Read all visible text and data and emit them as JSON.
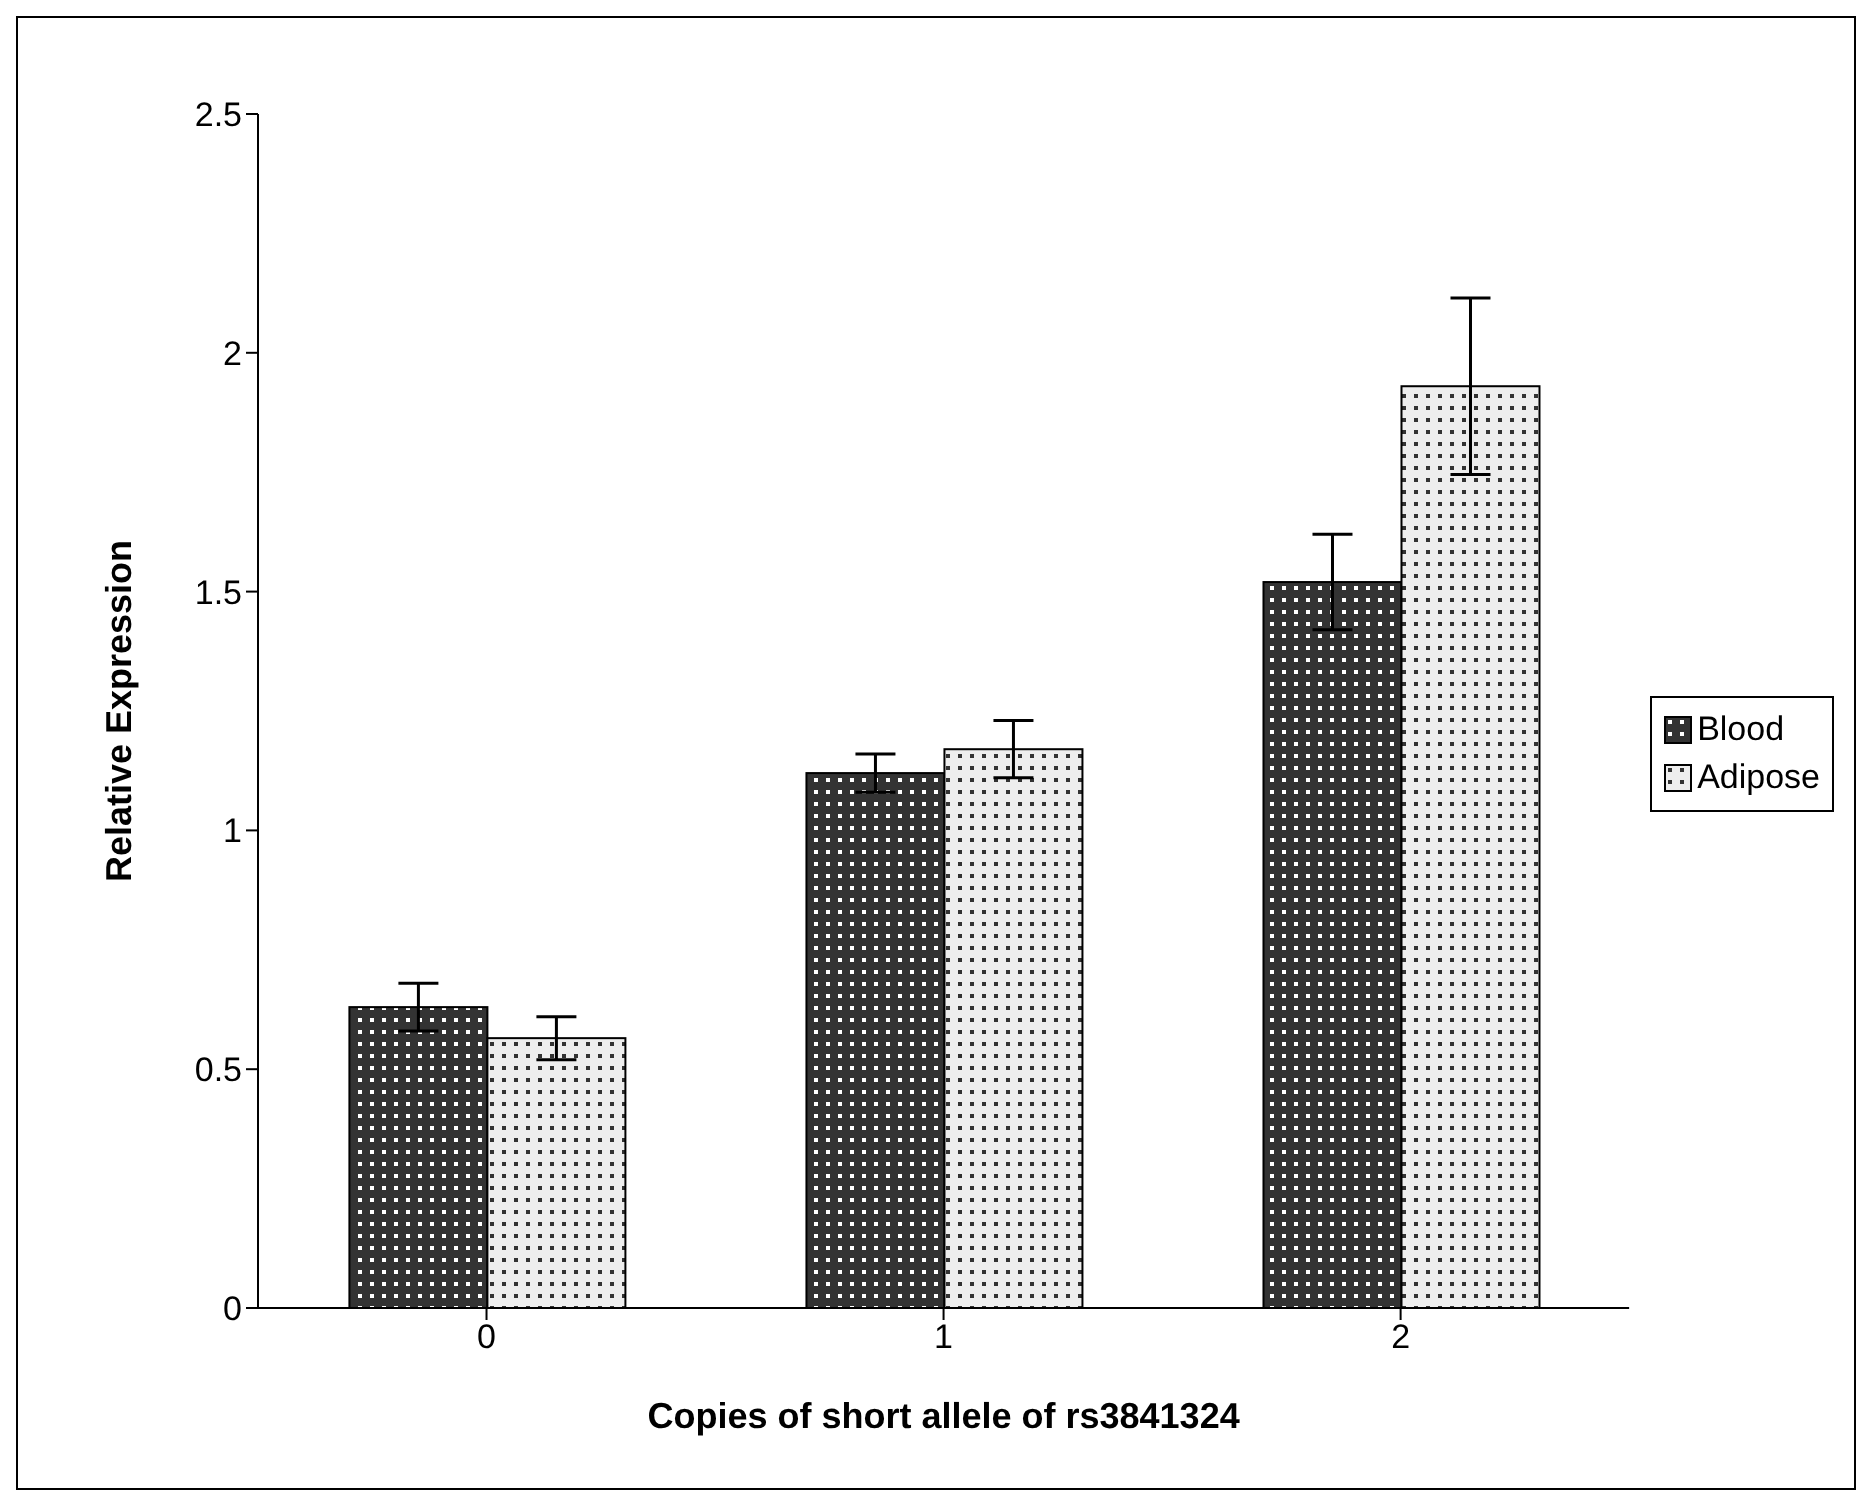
{
  "chart_data": {
    "type": "bar",
    "xlabel": "Copies of short allele of rs3841324",
    "ylabel": "Relative Expression",
    "categories": [
      "0",
      "1",
      "2"
    ],
    "series": [
      {
        "name": "Blood",
        "color": "#333333",
        "values": [
          0.63,
          1.12,
          1.52
        ],
        "errors": [
          0.05,
          0.04,
          0.1
        ]
      },
      {
        "name": "Adipose",
        "color": "#eeeeee",
        "values": [
          0.565,
          1.17,
          1.93
        ],
        "errors": [
          0.045,
          0.06,
          0.185
        ]
      }
    ],
    "ylim": [
      0,
      2.5
    ],
    "yticks": [
      0,
      0.5,
      1,
      1.5,
      2,
      2.5
    ],
    "grid": false,
    "legend": "right"
  }
}
